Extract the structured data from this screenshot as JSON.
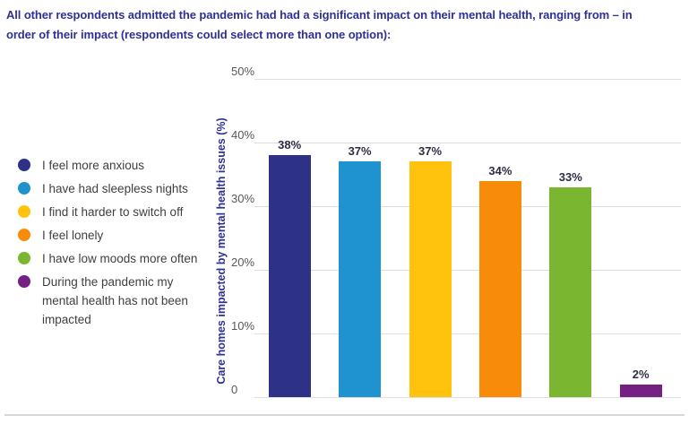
{
  "caption": {
    "text": "All other respondents admitted the pandemic had had a significant impact on their mental health, ranging from – in order of their impact (respondents could select more than one option):",
    "lines": [
      "All other respondents admitted the pandemic had had a significant impact on their mental health, ranging from – in",
      "order of their impact (respondents could select more than one option):"
    ]
  },
  "legend": {
    "items": [
      {
        "label": "I feel more anxious",
        "color": "#2d3187"
      },
      {
        "label": "I have had sleepless nights",
        "color": "#1f93d0"
      },
      {
        "label": "I find it harder to switch off",
        "color": "#ffc30d"
      },
      {
        "label": "I feel lonely",
        "color": "#f88b0a"
      },
      {
        "label": "I have low moods more often",
        "color": "#7ab62f"
      },
      {
        "label": "During the pandemic my mental health has not been impacted",
        "lines": [
          "During the pandemic my",
          "mental health has not been",
          "impacted"
        ],
        "color": "#752183"
      }
    ]
  },
  "chart_data": {
    "type": "bar",
    "title": "",
    "xlabel": "",
    "ylabel": "Care homes impacted by mental health issues (%)",
    "ylim": [
      0,
      50
    ],
    "yticks": [
      "50%",
      "40%",
      "30%",
      "20%",
      "10%",
      "0"
    ],
    "grid": true,
    "legend_position": "left",
    "categories": [
      "I feel more anxious",
      "I have had sleepless nights",
      "I find it harder to switch off",
      "I feel lonely",
      "I have low moods more often",
      "During the pandemic my mental health has not been impacted"
    ],
    "values": [
      38,
      37,
      37,
      34,
      33,
      2
    ],
    "value_labels": [
      "38%",
      "37%",
      "37%",
      "34%",
      "33%",
      "2%"
    ],
    "colors": [
      "#2d3187",
      "#1f93d0",
      "#ffc30d",
      "#f88b0a",
      "#7ab62f",
      "#752183"
    ]
  },
  "palette": {
    "caption_color": "#2e3192",
    "axis_label_color": "#2e3192",
    "tick_color": "#58585a",
    "value_label_color": "#2d2d44",
    "legend_text_color": "#3f3f41",
    "gridline_color": "#dedede",
    "divider_color": "#d8d8d8"
  }
}
